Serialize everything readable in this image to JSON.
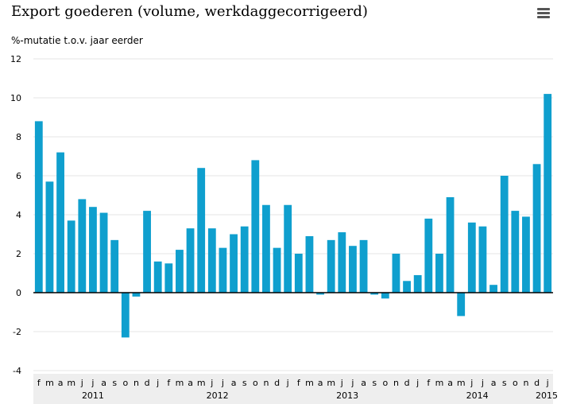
{
  "chart_data": {
    "type": "bar",
    "title": "Export goederen (volume, werkdaggecorrigeerd)",
    "ylabel": "%-mutatie t.o.v. jaar eerder",
    "xlabel": "",
    "ylim": [
      -4,
      12
    ],
    "yticks": [
      -4,
      -2,
      0,
      2,
      4,
      6,
      8,
      10,
      12
    ],
    "grid": true,
    "bar_color": "#0f9fce",
    "categories": [
      "f",
      "m",
      "a",
      "m",
      "j",
      "j",
      "a",
      "s",
      "o",
      "n",
      "d",
      "j",
      "f",
      "m",
      "a",
      "m",
      "j",
      "j",
      "a",
      "s",
      "o",
      "n",
      "d",
      "j",
      "f",
      "m",
      "a",
      "m",
      "j",
      "j",
      "a",
      "s",
      "o",
      "n",
      "d",
      "j",
      "f",
      "m",
      "a",
      "m",
      "j",
      "j",
      "a",
      "s",
      "o",
      "n",
      "d",
      "j"
    ],
    "years": [
      {
        "label": "2011",
        "start": 0,
        "end": 10
      },
      {
        "label": "2012",
        "start": 11,
        "end": 22
      },
      {
        "label": "2013",
        "start": 23,
        "end": 34
      },
      {
        "label": "2014",
        "start": 35,
        "end": 46
      },
      {
        "label": "2015",
        "start": 47,
        "end": 47
      }
    ],
    "values": [
      8.8,
      5.7,
      7.2,
      3.7,
      4.8,
      4.4,
      4.1,
      2.7,
      -2.3,
      -0.2,
      4.2,
      1.6,
      1.5,
      2.2,
      3.3,
      6.4,
      3.3,
      2.3,
      3.0,
      3.4,
      6.8,
      4.5,
      2.3,
      4.5,
      2.0,
      2.9,
      -0.1,
      2.7,
      3.1,
      2.4,
      2.7,
      -0.1,
      -0.3,
      2.0,
      0.6,
      0.9,
      3.8,
      2.0,
      4.9,
      -1.2,
      3.6,
      3.4,
      0.4,
      6.0,
      4.2,
      3.9,
      6.6,
      10.2
    ]
  }
}
